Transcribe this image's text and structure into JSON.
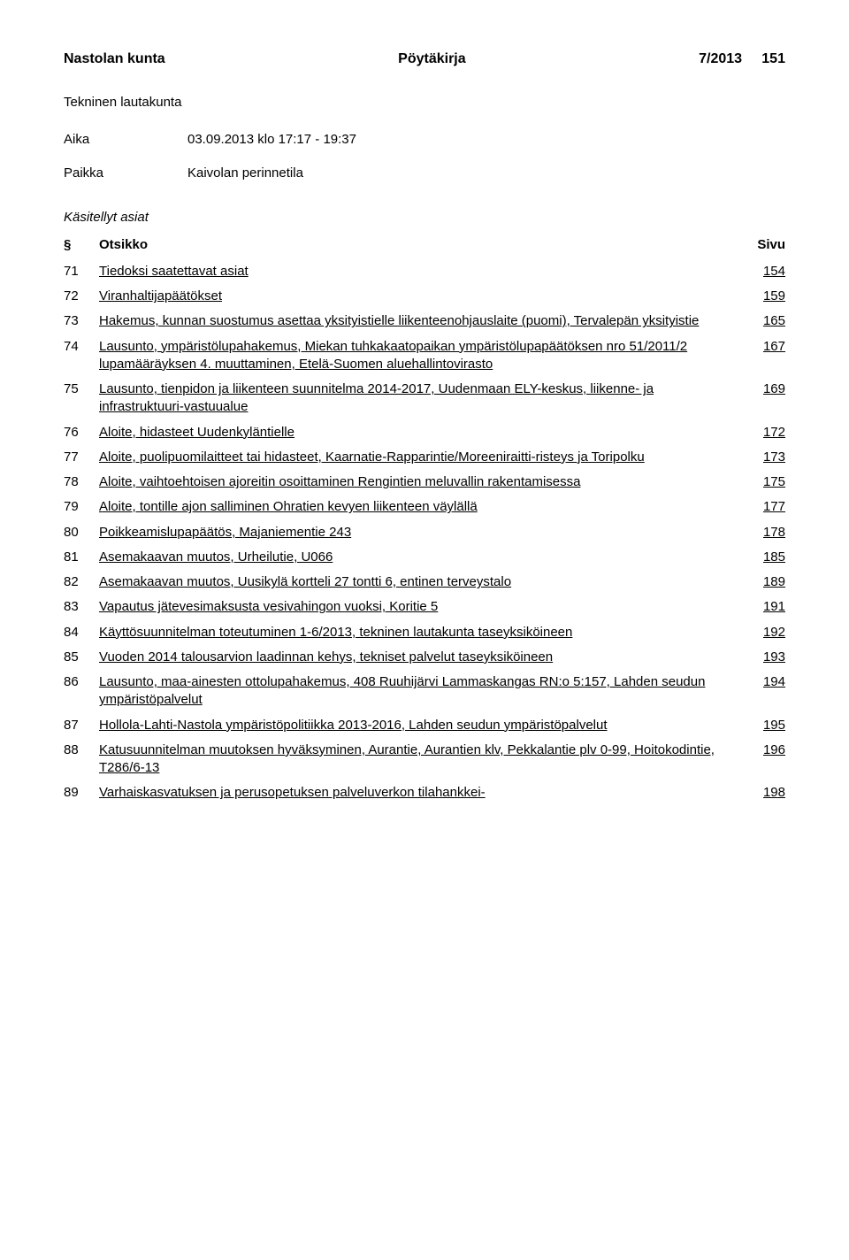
{
  "header": {
    "left": "Nastolan kunta",
    "center": "Pöytäkirja",
    "right_seq": "7/2013",
    "right_page": "151"
  },
  "body_title": "Tekninen lautakunta",
  "meta": {
    "aika_label": "Aika",
    "aika_value": "03.09.2013 klo 17:17 - 19:37",
    "paikka_label": "Paikka",
    "paikka_value": "Kaivolan perinnetila"
  },
  "subtitle": "Käsitellyt asiat",
  "columns": {
    "num": "§",
    "title": "Otsikko",
    "page": "Sivu"
  },
  "items": [
    {
      "num": "71",
      "title": "Tiedoksi saatettavat asiat",
      "page": "154"
    },
    {
      "num": "72",
      "title": "Viranhaltijapäätökset",
      "page": "159"
    },
    {
      "num": "73",
      "title": "Hakemus, kunnan suostumus asettaa yksityistielle liikenteenohjauslaite (puomi), Tervalepän yksityistie",
      "page": "165"
    },
    {
      "num": "74",
      "title": "Lausunto, ympäristölupahakemus, Miekan tuhkakaatopaikan ympäristölupapäätöksen nro 51/2011/2 lupamääräyksen 4. muuttaminen, Etelä-Suomen aluehallintovirasto",
      "page": "167"
    },
    {
      "num": "75",
      "title": "Lausunto, tienpidon ja liikenteen suunnitelma 2014-2017, Uudenmaan ELY-keskus, liikenne- ja infrastruktuuri-vastuualue",
      "page": "169"
    },
    {
      "num": "76",
      "title": "Aloite, hidasteet Uudenkyläntielle",
      "page": "172"
    },
    {
      "num": "77",
      "title": "Aloite, puolipuomilaitteet tai hidasteet, Kaarnatie-Rapparintie/Moreeniraitti-risteys ja Toripolku",
      "page": "173"
    },
    {
      "num": "78",
      "title": "Aloite, vaihtoehtoisen ajoreitin osoittaminen Rengintien meluvallin rakentamisessa",
      "page": "175"
    },
    {
      "num": "79",
      "title": "Aloite, tontille ajon salliminen Ohratien kevyen liikenteen väylällä",
      "page": "177"
    },
    {
      "num": "80",
      "title": "Poikkeamislupapäätös, Majaniementie 243",
      "page": "178"
    },
    {
      "num": "81",
      "title": "Asemakaavan muutos, Urheilutie, U066",
      "page": "185"
    },
    {
      "num": "82",
      "title": "Asemakaavan muutos, Uusikylä kortteli 27 tontti 6, entinen terveystalo",
      "page": "189"
    },
    {
      "num": "83",
      "title": "Vapautus jätevesimaksusta vesivahingon vuoksi, Koritie 5",
      "page": "191"
    },
    {
      "num": "84",
      "title": "Käyttösuunnitelman toteutuminen 1-6/2013, tekninen lautakunta taseyksiköineen",
      "page": "192"
    },
    {
      "num": "85",
      "title": "Vuoden 2014 talousarvion laadinnan kehys, tekniset palvelut taseyksiköineen",
      "page": "193"
    },
    {
      "num": "86",
      "title": "Lausunto, maa-ainesten ottolupahakemus, 408 Ruuhijärvi Lammaskangas RN:o 5:157, Lahden seudun ympäristöpalvelut",
      "page": "194"
    },
    {
      "num": "87",
      "title": "Hollola-Lahti-Nastola ympäristöpolitiikka 2013-2016, Lahden seudun ympäristöpalvelut",
      "page": "195"
    },
    {
      "num": "88",
      "title": "Katusuunnitelman muutoksen hyväksyminen, Aurantie, Aurantien klv, Pekkalantie plv 0-99, Hoitokodintie, T286/6-13",
      "page": "196"
    },
    {
      "num": "89",
      "title": "Varhaiskasvatuksen ja perusopetuksen palveluverkon tilahankkei-",
      "page": "198"
    }
  ]
}
